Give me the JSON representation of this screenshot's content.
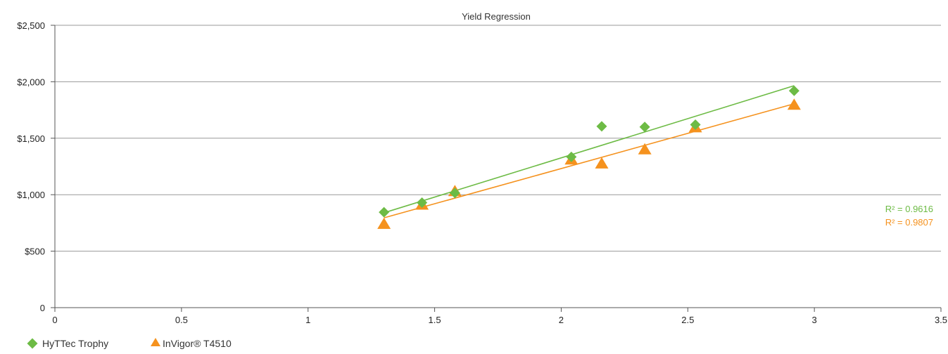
{
  "chart_data": {
    "type": "scatter",
    "title": "Yield Regression",
    "xlabel": "",
    "ylabel": "",
    "xlim": [
      0,
      3.5
    ],
    "ylim": [
      0,
      2500
    ],
    "x_ticks": [
      "0",
      "0.5",
      "1",
      "1.5",
      "2",
      "2.5",
      "3",
      "3.5"
    ],
    "x_tick_values": [
      0,
      0.5,
      1,
      1.5,
      2,
      2.5,
      3,
      3.5
    ],
    "y_ticks": [
      "0",
      "$500",
      "$1,000",
      "$1,500",
      "$2,000",
      "$2,500"
    ],
    "y_tick_values": [
      0,
      500,
      1000,
      1500,
      2000,
      2500
    ],
    "grid": "horizontal",
    "legend_position": "bottom-left",
    "series": [
      {
        "name": "HyTTec Trophy",
        "marker": "diamond",
        "color": "#6dbb45",
        "x": [
          1.3,
          1.45,
          1.58,
          2.04,
          2.16,
          2.33,
          2.53,
          2.92
        ],
        "y": [
          845,
          930,
          1015,
          1335,
          1605,
          1600,
          1620,
          1920
        ],
        "trendline": {
          "x": [
            1.3,
            2.92
          ],
          "y": [
            840,
            1965
          ]
        },
        "r2_label": "R² = 0.9616"
      },
      {
        "name": "InVigor® T4510",
        "marker": "triangle",
        "color": "#f5921e",
        "x": [
          1.3,
          1.45,
          1.58,
          2.04,
          2.16,
          2.33,
          2.53,
          2.92
        ],
        "y": [
          735,
          905,
          1025,
          1305,
          1270,
          1395,
          1590,
          1790
        ],
        "trendline": {
          "x": [
            1.3,
            2.92
          ],
          "y": [
            795,
            1805
          ]
        },
        "r2_label": "R² = 0.9807"
      }
    ]
  }
}
